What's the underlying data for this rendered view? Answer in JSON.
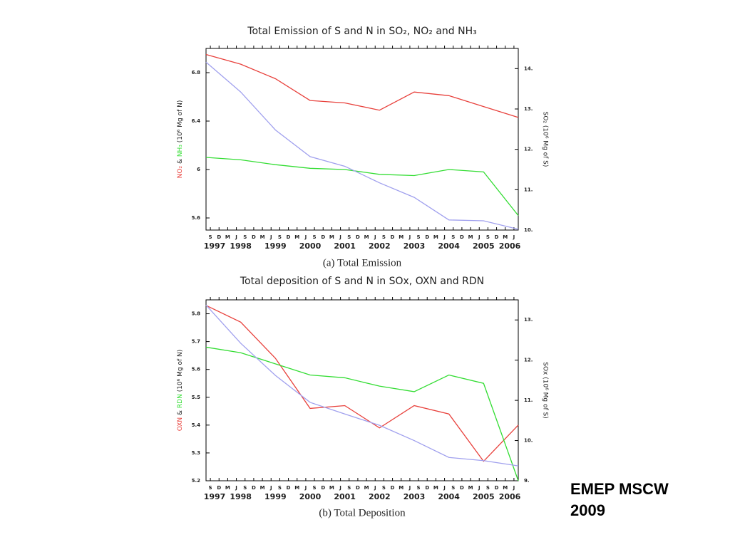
{
  "chart_data": [
    {
      "type": "line",
      "title": "Total Emission of S and N in SO₂, NO₂ and NH₃",
      "caption": "(a) Total Emission",
      "ylabel_parts": [
        "NO₂",
        " & ",
        "NH₃",
        " (10⁶ Mg of N)"
      ],
      "y2label": "SO₂ (10⁶ Mg of S)",
      "categories": [
        "1997",
        "1998",
        "1999",
        "2000",
        "2001",
        "2002",
        "2003",
        "2004",
        "2005",
        "2006"
      ],
      "season_labels": [
        "S",
        "D",
        "M",
        "J",
        "S",
        "D",
        "M",
        "J",
        "S",
        "D",
        "M",
        "J",
        "S",
        "D",
        "M",
        "J",
        "S",
        "D",
        "M",
        "J",
        "S",
        "D",
        "M",
        "J",
        "S",
        "D",
        "M",
        "J",
        "S",
        "D",
        "M",
        "J",
        "S",
        "D",
        "M",
        "J"
      ],
      "ylim": [
        5.5,
        7.0
      ],
      "yticks": [
        5.6,
        6.0,
        6.4,
        6.8
      ],
      "y2lim": [
        10,
        14.5
      ],
      "y2ticks": [
        {
          "value": 10,
          "label": "10."
        },
        {
          "value": 11,
          "label": "11."
        },
        {
          "value": 12,
          "label": "12."
        },
        {
          "value": 13,
          "label": "13."
        },
        {
          "value": 14,
          "label": "14."
        }
      ],
      "series": [
        {
          "name": "NO₂",
          "color": "#e8413c",
          "values": [
            6.95,
            6.87,
            6.75,
            6.57,
            6.55,
            6.49,
            6.64,
            6.61,
            6.52,
            6.43
          ]
        },
        {
          "name": "NH₃",
          "color": "#33dd33",
          "values": [
            6.1,
            6.08,
            6.04,
            6.01,
            6.0,
            5.96,
            5.95,
            6.0,
            5.98,
            5.62
          ]
        },
        {
          "name": "SO₂",
          "color": "#a0a0ee",
          "axis": "y2",
          "values": [
            14.16,
            13.42,
            12.48,
            11.82,
            11.58,
            11.17,
            10.81,
            10.25,
            10.23,
            10.02
          ]
        }
      ]
    },
    {
      "type": "line",
      "title": "Total deposition of S and N in SOx, OXN and RDN",
      "caption": "(b) Total Deposition",
      "ylabel_parts": [
        "OXN",
        " & ",
        "RDN",
        " (10⁶ Mg of N)"
      ],
      "y2label": "SOx (10⁶ Mg of S)",
      "categories": [
        "1997",
        "1998",
        "1999",
        "2000",
        "2001",
        "2002",
        "2003",
        "2004",
        "2005",
        "2006"
      ],
      "season_labels": [
        "S",
        "D",
        "M",
        "J",
        "S",
        "D",
        "M",
        "J",
        "S",
        "D",
        "M",
        "J",
        "S",
        "D",
        "M",
        "J",
        "S",
        "D",
        "M",
        "J",
        "S",
        "D",
        "M",
        "J",
        "S",
        "D",
        "M",
        "J",
        "S",
        "D",
        "M",
        "J",
        "S",
        "D",
        "M",
        "J"
      ],
      "ylim": [
        5.2,
        5.85
      ],
      "yticks": [
        5.2,
        5.3,
        5.4,
        5.5,
        5.6,
        5.7,
        5.8
      ],
      "y2lim": [
        9,
        13.5
      ],
      "y2ticks": [
        {
          "value": 9,
          "label": "9."
        },
        {
          "value": 10,
          "label": "10."
        },
        {
          "value": 11,
          "label": "11."
        },
        {
          "value": 12,
          "label": "12."
        },
        {
          "value": 13,
          "label": "13."
        }
      ],
      "series": [
        {
          "name": "OXN",
          "color": "#e8413c",
          "values": [
            5.83,
            5.77,
            5.64,
            5.46,
            5.47,
            5.39,
            5.47,
            5.44,
            5.27,
            5.4
          ]
        },
        {
          "name": "RDN",
          "color": "#33dd33",
          "values": [
            5.68,
            5.66,
            5.62,
            5.58,
            5.57,
            5.54,
            5.52,
            5.58,
            5.55,
            5.2
          ]
        },
        {
          "name": "SOx",
          "color": "#a0a0ee",
          "axis": "y2",
          "values": [
            13.37,
            12.42,
            11.62,
            10.95,
            10.66,
            10.38,
            10.0,
            9.58,
            9.5,
            9.37
          ]
        }
      ]
    }
  ],
  "note": [
    "EMEP MSCW",
    "2009"
  ]
}
